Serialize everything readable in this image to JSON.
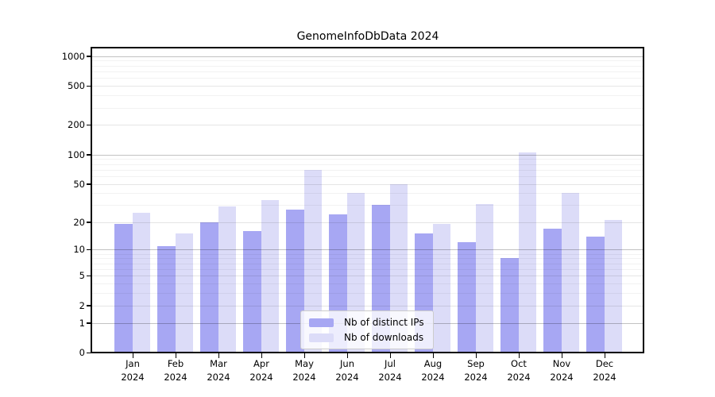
{
  "chart_data": {
    "type": "bar",
    "title": "GenomeInfoDbData 2024",
    "categories": [
      "Jan 2024",
      "Feb 2024",
      "Mar 2024",
      "Apr 2024",
      "May 2024",
      "Jun 2024",
      "Jul 2024",
      "Aug 2024",
      "Sep 2024",
      "Oct 2024",
      "Nov 2024",
      "Dec 2024"
    ],
    "series": [
      {
        "name": "Nb of distinct IPs",
        "color": "#a7a7f3",
        "values": [
          19,
          11,
          20,
          16,
          27,
          24,
          30,
          15,
          12,
          8,
          17,
          14
        ]
      },
      {
        "name": "Nb of downloads",
        "color": "#dcdcf8",
        "values": [
          25,
          15,
          29,
          34,
          70,
          40,
          50,
          19,
          31,
          106,
          40,
          21
        ]
      }
    ],
    "xlabel": "",
    "ylabel": "",
    "yscale": "log1p",
    "ylim": [
      0,
      1230
    ],
    "yticks": [
      0,
      1,
      2,
      5,
      10,
      20,
      50,
      100,
      200,
      500,
      1000
    ],
    "minor_gridlines": [
      3,
      4,
      6,
      7,
      8,
      9,
      30,
      40,
      60,
      70,
      80,
      90,
      300,
      400,
      600,
      700,
      800,
      900
    ],
    "grid": true,
    "legend_position": "lower-center-inside"
  },
  "colors": {
    "frame": "#000000",
    "background": "#ffffff",
    "legend_border": "#cccccc"
  }
}
